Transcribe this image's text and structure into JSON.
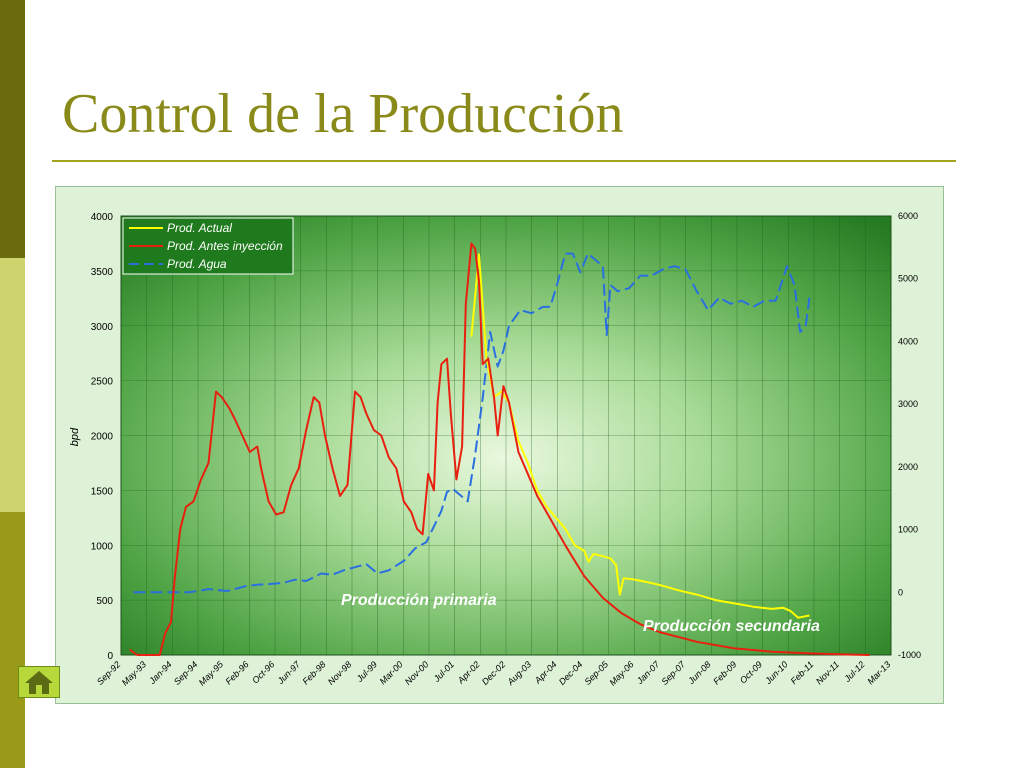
{
  "slide": {
    "title": "Control de la Producción",
    "nav_icon": "home-icon"
  },
  "colors": {
    "title": "#8a8a1a",
    "band_dark": "#6b6b0f",
    "band_light": "#cfd36e",
    "actual": "#ffff00",
    "antes": "#e8200f",
    "agua": "#2a6fe0",
    "plot_bg": "#2f8a2a"
  },
  "chart_data": {
    "type": "line",
    "title": "",
    "xlabel": "",
    "ylabel": "bpd",
    "ylim": [
      0,
      4000
    ],
    "y2lim": [
      -1000,
      6000
    ],
    "yticks": [
      "4000",
      "3500",
      "3000",
      "2500",
      "2000",
      "1500",
      "1000",
      "500",
      "0"
    ],
    "y2ticks": [
      "6000",
      "5000",
      "4000",
      "3000",
      "2000",
      "1000",
      "0",
      "-1000"
    ],
    "xticks": [
      "Sep-92",
      "May-93",
      "Jan-94",
      "Sep-94",
      "May-95",
      "Feb-96",
      "Oct-96",
      "Jun-97",
      "Feb-98",
      "Nov-98",
      "Jul-99",
      "Mar-00",
      "Nov-00",
      "Jul-01",
      "Apr-02",
      "Dec-02",
      "Aug-03",
      "Apr-04",
      "Dec-04",
      "Sep-05",
      "May-06",
      "Jan-07",
      "Sep-07",
      "Jun-08",
      "Feb-09",
      "Oct-09",
      "Jun-10",
      "Feb-11",
      "Nov-11",
      "Jul-12",
      "Mar-13"
    ],
    "x_range": [
      1992.67,
      2013.17
    ],
    "grid": true,
    "legend_position": "top-left",
    "annotations": [
      "Producción primaria",
      "Producción secundaria"
    ],
    "series": [
      {
        "name": "Prod. Actual",
        "axis": "left",
        "style": "solid",
        "x": [
          2002.0,
          2002.2,
          2002.4,
          2002.6,
          2002.8,
          2003.0,
          2003.25,
          2003.5,
          2003.75,
          2004.0,
          2004.25,
          2004.5,
          2004.75,
          2005.0,
          2005.12,
          2005.25,
          2005.5,
          2005.7,
          2005.85,
          2005.95,
          2006.05,
          2006.3,
          2006.6,
          2007.0,
          2007.5,
          2008.0,
          2008.5,
          2009.0,
          2009.5,
          2010.0,
          2010.3,
          2010.5,
          2010.7,
          2011.0
        ],
        "y": [
          2900,
          3650,
          2700,
          2350,
          2400,
          2300,
          1950,
          1750,
          1500,
          1350,
          1250,
          1150,
          1000,
          950,
          850,
          920,
          900,
          880,
          820,
          550,
          700,
          690,
          670,
          640,
          590,
          550,
          500,
          470,
          440,
          420,
          430,
          400,
          340,
          360
        ]
      },
      {
        "name": "Prod. Antes inyección",
        "axis": "left",
        "style": "solid",
        "x": [
          1992.9,
          1993.1,
          1993.5,
          1993.7,
          1993.85,
          1994.0,
          1994.1,
          1994.25,
          1994.4,
          1994.6,
          1994.8,
          1995.0,
          1995.2,
          1995.35,
          1995.45,
          1995.55,
          1995.7,
          1995.9,
          1996.1,
          1996.3,
          1996.4,
          1996.6,
          1996.8,
          1997.0,
          1997.2,
          1997.4,
          1997.6,
          1997.8,
          1997.95,
          1998.1,
          1998.3,
          1998.5,
          1998.7,
          1998.9,
          1999.05,
          1999.2,
          1999.4,
          1999.6,
          1999.8,
          2000.0,
          2000.2,
          2000.4,
          2000.55,
          2000.7,
          2000.85,
          2001.0,
          2001.1,
          2001.2,
          2001.35,
          2001.45,
          2001.6,
          2001.75,
          2001.85,
          2002.0,
          2002.1,
          2002.2,
          2002.3,
          2002.45,
          2002.6,
          2002.7,
          2002.85,
          2003.0,
          2003.25,
          2003.5,
          2003.75,
          2004.0,
          2004.5,
          2005.0,
          2005.5,
          2006.0,
          2006.5,
          2007.0,
          2008.0,
          2009.0,
          2010.0,
          2011.0,
          2012.0,
          2012.6
        ],
        "y": [
          50,
          0,
          0,
          0,
          200,
          300,
          700,
          1150,
          1350,
          1400,
          1600,
          1750,
          2400,
          2350,
          2300,
          2250,
          2150,
          2000,
          1850,
          1900,
          1700,
          1400,
          1280,
          1300,
          1550,
          1700,
          2050,
          2350,
          2300,
          2000,
          1700,
          1450,
          1550,
          2400,
          2350,
          2200,
          2050,
          2000,
          1800,
          1700,
          1400,
          1300,
          1150,
          1100,
          1650,
          1500,
          2300,
          2650,
          2700,
          2200,
          1600,
          1900,
          3200,
          3750,
          3700,
          3400,
          2650,
          2700,
          2350,
          2000,
          2450,
          2300,
          1850,
          1650,
          1450,
          1300,
          1000,
          720,
          520,
          380,
          280,
          210,
          120,
          60,
          30,
          15,
          5,
          0
        ]
      },
      {
        "name": "Prod. Agua",
        "axis": "right",
        "style": "dashed",
        "x": [
          1993.0,
          1993.5,
          1994.0,
          1994.5,
          1995.0,
          1995.5,
          1996.0,
          1996.3,
          1996.6,
          1997.0,
          1997.3,
          1997.6,
          1998.0,
          1998.3,
          1998.6,
          1998.9,
          1999.2,
          1999.5,
          1999.8,
          2000.2,
          2000.5,
          2000.8,
          2001.0,
          2001.2,
          2001.35,
          2001.5,
          2001.7,
          2001.9,
          2002.1,
          2002.3,
          2002.5,
          2002.7,
          2002.85,
          2003.0,
          2003.3,
          2003.6,
          2003.9,
          2004.1,
          2004.3,
          2004.5,
          2004.7,
          2004.9,
          2005.1,
          2005.3,
          2005.5,
          2005.6,
          2005.7,
          2005.9,
          2006.2,
          2006.5,
          2006.8,
          2007.1,
          2007.4,
          2007.7,
          2008.0,
          2008.3,
          2008.6,
          2008.9,
          2009.2,
          2009.5,
          2009.8,
          2010.1,
          2010.4,
          2010.6,
          2010.75,
          2010.9,
          2011.0
        ],
        "y": [
          0,
          0,
          0,
          0,
          50,
          20,
          100,
          120,
          130,
          150,
          200,
          180,
          300,
          280,
          350,
          400,
          450,
          300,
          350,
          500,
          700,
          800,
          1050,
          1300,
          1600,
          1650,
          1550,
          1450,
          2200,
          3100,
          4150,
          3600,
          3850,
          4250,
          4500,
          4450,
          4550,
          4550,
          4950,
          5400,
          5400,
          5100,
          5400,
          5300,
          5200,
          4100,
          4900,
          4800,
          4850,
          5050,
          5050,
          5150,
          5200,
          5150,
          4800,
          4500,
          4700,
          4600,
          4650,
          4550,
          4650,
          4650,
          5200,
          4900,
          4150,
          4250,
          4700
        ]
      }
    ]
  }
}
